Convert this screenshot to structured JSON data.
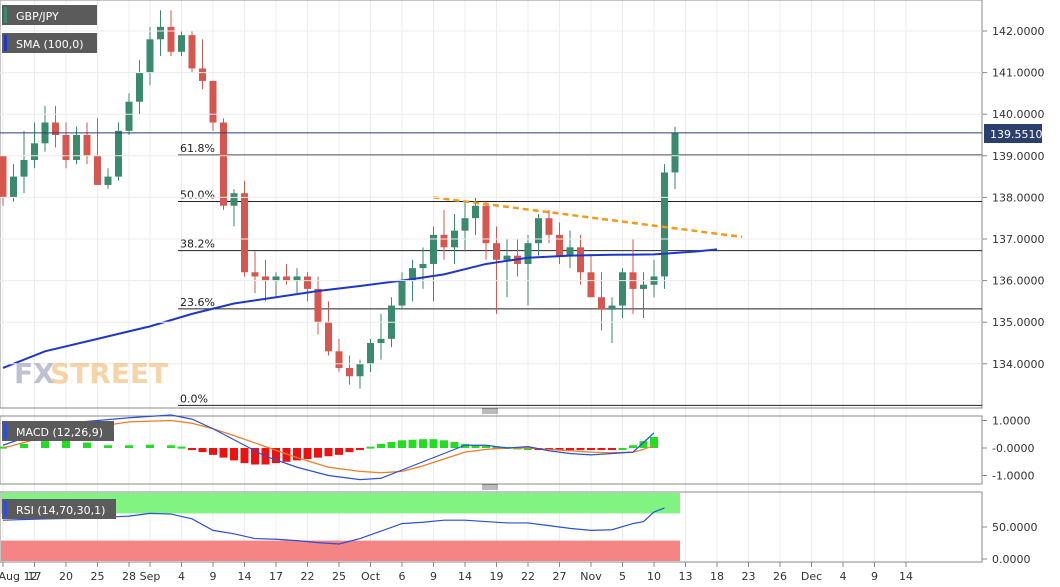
{
  "chart_data": {
    "type": "candlestick",
    "symbol": "GBP/JPY",
    "indicator_labels": {
      "sma": "SMA (100,0)",
      "macd": "MACD (12,26,9)",
      "rsi": "RSI (14,70,30,1)"
    },
    "watermark": {
      "part1": "FX",
      "part2": "STREET"
    },
    "last_price": "139.5510",
    "colors": {
      "bull": "#3a8a6e",
      "bear": "#d6574f",
      "sma": "#1f37c8",
      "trendline": "#f39a1a",
      "macd_line": "#2b4fd8",
      "signal_line": "#ef7a2a",
      "hist_pos": "#22dd22",
      "hist_neg": "#ee1111",
      "price_tag": "#2a3f6e",
      "legend_tag": "#5b5b5b",
      "rsi_overbought": "#80f380",
      "rsi_oversold": "#f58585"
    },
    "price_axis": {
      "ticks": [
        "142.0000",
        "141.0000",
        "140.0000",
        "139.0000",
        "138.0000",
        "137.0000",
        "136.0000",
        "135.0000",
        "134.0000"
      ],
      "values": [
        142,
        141,
        140,
        139,
        138,
        137,
        136,
        135,
        134
      ]
    },
    "macd_axis": {
      "ticks": [
        "1.0000",
        "-0.0000",
        "-1.0000"
      ],
      "values": [
        1,
        0,
        -1
      ]
    },
    "rsi_axis": {
      "ticks": [
        "50.0000",
        "0.0000"
      ],
      "values": [
        50,
        0
      ]
    },
    "date_axis": {
      "labels": [
        "Aug 12",
        "17",
        "20",
        "25",
        "28",
        "Sep",
        "4",
        "9",
        "14",
        "17",
        "22",
        "25",
        "Oct",
        "6",
        "9",
        "14",
        "19",
        "22",
        "27",
        "Nov",
        "5",
        "10",
        "13",
        "18",
        "23",
        "26",
        "Dec",
        "4",
        "9",
        "14"
      ],
      "bar_index": [
        0,
        3,
        6,
        9,
        12,
        14,
        17,
        20,
        23,
        26,
        29,
        32,
        35,
        38,
        41,
        44,
        47,
        50,
        53,
        56,
        59,
        62,
        65,
        68,
        71,
        74,
        77,
        80,
        83,
        86
      ]
    },
    "fibonacci": [
      {
        "label": "61.8%",
        "value": 139.02
      },
      {
        "label": "50.0%",
        "value": 137.9
      },
      {
        "label": "38.2%",
        "value": 136.72
      },
      {
        "label": "23.6%",
        "value": 135.32
      },
      {
        "label": "0.0%",
        "value": 133.0
      }
    ],
    "trendline": {
      "from": [
        41,
        138.0
      ],
      "to": [
        63,
        137.2
      ]
    },
    "candles": [
      [
        139.0,
        139.0,
        137.8,
        138.0
      ],
      [
        138.0,
        138.8,
        137.9,
        138.5
      ],
      [
        138.5,
        139.6,
        138.1,
        138.9
      ],
      [
        138.9,
        139.8,
        138.7,
        139.3
      ],
      [
        139.3,
        140.2,
        139.1,
        139.8
      ],
      [
        139.8,
        140.2,
        139.2,
        139.5
      ],
      [
        139.5,
        139.8,
        138.7,
        138.9
      ],
      [
        138.9,
        139.7,
        138.8,
        139.5
      ],
      [
        139.5,
        139.8,
        138.8,
        139.0
      ],
      [
        139.0,
        139.9,
        138.3,
        138.3
      ],
      [
        138.3,
        138.7,
        138.2,
        138.5
      ],
      [
        138.5,
        139.8,
        138.4,
        139.6
      ],
      [
        139.6,
        140.5,
        139.5,
        140.3
      ],
      [
        140.3,
        141.3,
        140.0,
        141.0
      ],
      [
        141.0,
        142.1,
        140.7,
        141.8
      ],
      [
        141.8,
        142.5,
        141.4,
        142.1
      ],
      [
        142.1,
        142.5,
        141.4,
        141.5
      ],
      [
        141.5,
        142.0,
        141.4,
        141.9
      ],
      [
        141.9,
        142.0,
        141.0,
        141.1
      ],
      [
        141.1,
        141.8,
        140.6,
        140.8
      ],
      [
        140.8,
        140.8,
        139.6,
        139.8
      ],
      [
        139.8,
        139.9,
        137.7,
        137.8
      ],
      [
        137.8,
        138.2,
        137.3,
        138.1
      ],
      [
        138.1,
        138.4,
        136.1,
        136.2
      ],
      [
        136.2,
        136.7,
        135.7,
        136.1
      ],
      [
        136.1,
        136.5,
        135.5,
        136.0
      ],
      [
        136.0,
        136.2,
        135.6,
        136.1
      ],
      [
        136.1,
        136.4,
        135.9,
        136.0
      ],
      [
        136.0,
        136.3,
        135.7,
        136.1
      ],
      [
        136.1,
        136.2,
        135.5,
        135.8
      ],
      [
        135.8,
        136.1,
        134.7,
        135.0
      ],
      [
        135.0,
        135.5,
        134.2,
        134.3
      ],
      [
        134.3,
        134.6,
        133.8,
        133.9
      ],
      [
        133.9,
        134.2,
        133.5,
        133.7
      ],
      [
        133.7,
        134.1,
        133.4,
        134.0
      ],
      [
        134.0,
        134.6,
        133.8,
        134.5
      ],
      [
        134.5,
        135.2,
        134.1,
        134.6
      ],
      [
        134.6,
        135.6,
        134.4,
        135.4
      ],
      [
        135.4,
        136.2,
        135.3,
        136.0
      ],
      [
        136.0,
        136.5,
        135.5,
        136.3
      ],
      [
        136.3,
        136.8,
        135.8,
        136.4
      ],
      [
        136.4,
        137.3,
        135.5,
        137.1
      ],
      [
        137.1,
        137.7,
        136.5,
        136.8
      ],
      [
        136.8,
        137.6,
        136.4,
        137.2
      ],
      [
        137.2,
        137.9,
        136.7,
        137.5
      ],
      [
        137.5,
        138.0,
        137.1,
        137.8
      ],
      [
        137.8,
        137.9,
        136.5,
        136.9
      ],
      [
        136.9,
        137.3,
        135.2,
        136.5
      ],
      [
        136.5,
        137.0,
        135.6,
        136.6
      ],
      [
        136.6,
        137.0,
        136.1,
        136.4
      ],
      [
        136.4,
        137.1,
        135.4,
        136.9
      ],
      [
        136.9,
        137.6,
        136.6,
        137.5
      ],
      [
        137.5,
        137.7,
        136.9,
        137.1
      ],
      [
        137.1,
        137.4,
        136.4,
        136.6
      ],
      [
        136.6,
        137.2,
        136.3,
        136.8
      ],
      [
        136.8,
        137.1,
        135.9,
        136.2
      ],
      [
        136.2,
        136.6,
        135.6,
        135.6
      ],
      [
        135.6,
        136.2,
        134.8,
        135.3
      ],
      [
        135.3,
        135.6,
        134.5,
        135.4
      ],
      [
        135.4,
        136.3,
        135.1,
        136.2
      ],
      [
        136.2,
        137.0,
        135.2,
        135.8
      ],
      [
        135.8,
        136.2,
        135.1,
        135.9
      ],
      [
        135.9,
        136.5,
        135.6,
        136.1
      ],
      [
        136.1,
        138.8,
        135.8,
        138.6
      ],
      [
        138.6,
        139.7,
        138.2,
        139.55
      ]
    ],
    "sma": [
      [
        0,
        133.9
      ],
      [
        4,
        134.3
      ],
      [
        9,
        134.6
      ],
      [
        14,
        134.9
      ],
      [
        18,
        135.2
      ],
      [
        22,
        135.45
      ],
      [
        26,
        135.6
      ],
      [
        30,
        135.75
      ],
      [
        34,
        135.87
      ],
      [
        38,
        136.0
      ],
      [
        42,
        136.15
      ],
      [
        46,
        136.4
      ],
      [
        50,
        136.55
      ],
      [
        54,
        136.6
      ],
      [
        58,
        136.62
      ],
      [
        62,
        136.63
      ],
      [
        66,
        136.7
      ],
      [
        68,
        136.75
      ]
    ],
    "macd_line": [
      [
        0,
        0.1
      ],
      [
        6,
        0.9
      ],
      [
        12,
        1.1
      ],
      [
        16,
        1.2
      ],
      [
        18,
        1.05
      ],
      [
        20,
        0.7
      ],
      [
        22,
        0.3
      ],
      [
        25,
        -0.3
      ],
      [
        28,
        -0.7
      ],
      [
        31,
        -1.0
      ],
      [
        34,
        -1.15
      ],
      [
        36,
        -1.1
      ],
      [
        38,
        -0.8
      ],
      [
        40,
        -0.5
      ],
      [
        42,
        -0.2
      ],
      [
        44,
        0.1
      ],
      [
        46,
        0.1
      ],
      [
        48,
        0.0
      ],
      [
        50,
        0.05
      ],
      [
        52,
        -0.1
      ],
      [
        54,
        -0.2
      ],
      [
        56,
        -0.25
      ],
      [
        58,
        -0.2
      ],
      [
        60,
        -0.15
      ],
      [
        61,
        0.2
      ],
      [
        62,
        0.55
      ]
    ],
    "signal_line": [
      [
        0,
        0.0
      ],
      [
        6,
        0.6
      ],
      [
        12,
        0.95
      ],
      [
        16,
        1.0
      ],
      [
        18,
        0.9
      ],
      [
        20,
        0.7
      ],
      [
        22,
        0.45
      ],
      [
        25,
        0.05
      ],
      [
        28,
        -0.35
      ],
      [
        31,
        -0.7
      ],
      [
        34,
        -0.85
      ],
      [
        36,
        -0.9
      ],
      [
        38,
        -0.85
      ],
      [
        40,
        -0.65
      ],
      [
        42,
        -0.4
      ],
      [
        44,
        -0.15
      ],
      [
        46,
        -0.05
      ],
      [
        48,
        -0.0
      ],
      [
        50,
        -0.0
      ],
      [
        52,
        -0.05
      ],
      [
        54,
        -0.1
      ],
      [
        56,
        -0.15
      ],
      [
        58,
        -0.17
      ],
      [
        60,
        -0.15
      ],
      [
        61,
        -0.05
      ],
      [
        62,
        0.1
      ]
    ],
    "macd_hist": [
      [
        0,
        0.05
      ],
      [
        2,
        0.15
      ],
      [
        4,
        0.25
      ],
      [
        6,
        0.3
      ],
      [
        8,
        0.2
      ],
      [
        10,
        0.1
      ],
      [
        12,
        0.1
      ],
      [
        14,
        0.12
      ],
      [
        16,
        0.1
      ],
      [
        17,
        0.05
      ],
      [
        18,
        -0.05
      ],
      [
        19,
        -0.15
      ],
      [
        20,
        -0.25
      ],
      [
        21,
        -0.35
      ],
      [
        22,
        -0.45
      ],
      [
        23,
        -0.55
      ],
      [
        24,
        -0.6
      ],
      [
        25,
        -0.6
      ],
      [
        26,
        -0.55
      ],
      [
        27,
        -0.5
      ],
      [
        28,
        -0.45
      ],
      [
        29,
        -0.4
      ],
      [
        30,
        -0.35
      ],
      [
        31,
        -0.3
      ],
      [
        32,
        -0.25
      ],
      [
        33,
        -0.15
      ],
      [
        34,
        -0.05
      ],
      [
        35,
        0.05
      ],
      [
        36,
        0.15
      ],
      [
        37,
        0.22
      ],
      [
        38,
        0.28
      ],
      [
        39,
        0.3
      ],
      [
        40,
        0.32
      ],
      [
        41,
        0.32
      ],
      [
        42,
        0.28
      ],
      [
        43,
        0.22
      ],
      [
        44,
        0.15
      ],
      [
        45,
        0.1
      ],
      [
        46,
        0.08
      ],
      [
        47,
        0.05
      ],
      [
        48,
        0.04
      ],
      [
        49,
        0.02
      ],
      [
        50,
        0.0
      ],
      [
        51,
        -0.04
      ],
      [
        52,
        -0.06
      ],
      [
        53,
        -0.08
      ],
      [
        54,
        -0.08
      ],
      [
        55,
        -0.06
      ],
      [
        56,
        -0.05
      ],
      [
        57,
        -0.04
      ],
      [
        58,
        -0.03
      ],
      [
        59,
        0.0
      ],
      [
        60,
        0.1
      ],
      [
        61,
        0.25
      ],
      [
        62,
        0.4
      ]
    ],
    "rsi": [
      [
        0,
        60
      ],
      [
        4,
        62
      ],
      [
        8,
        63
      ],
      [
        12,
        66
      ],
      [
        14,
        70
      ],
      [
        16,
        69
      ],
      [
        18,
        62
      ],
      [
        20,
        45
      ],
      [
        22,
        40
      ],
      [
        24,
        33
      ],
      [
        26,
        32
      ],
      [
        28,
        30
      ],
      [
        30,
        27
      ],
      [
        32,
        25
      ],
      [
        34,
        33
      ],
      [
        36,
        44
      ],
      [
        38,
        55
      ],
      [
        40,
        57
      ],
      [
        42,
        60
      ],
      [
        44,
        60
      ],
      [
        46,
        58
      ],
      [
        48,
        56
      ],
      [
        50,
        56
      ],
      [
        52,
        52
      ],
      [
        54,
        48
      ],
      [
        56,
        45
      ],
      [
        58,
        46
      ],
      [
        60,
        55
      ],
      [
        61,
        58
      ],
      [
        62,
        72
      ],
      [
        63,
        78
      ]
    ],
    "rsi_levels": {
      "overbought": 70,
      "oversold": 30
    }
  }
}
